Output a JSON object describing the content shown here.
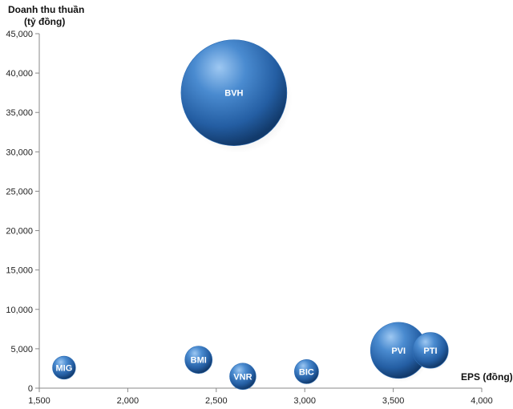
{
  "chart_data": {
    "type": "scatter",
    "xlabel": "EPS (đồng)",
    "ylabel_line1": "Doanh thu thuần",
    "ylabel_line2": "(tỷ đồng)",
    "xlim": [
      1500,
      4000
    ],
    "ylim": [
      0,
      45000
    ],
    "x_ticks": [
      1500,
      2000,
      2500,
      3000,
      3500,
      4000
    ],
    "y_ticks": [
      0,
      5000,
      10000,
      15000,
      20000,
      25000,
      30000,
      35000,
      40000,
      45000
    ],
    "x_tick_labels": [
      "1,500",
      "2,000",
      "2,500",
      "3,000",
      "3,500",
      "4,000"
    ],
    "y_tick_labels": [
      "0",
      "5,000",
      "10,000",
      "15,000",
      "20,000",
      "25,000",
      "30,000",
      "35,000",
      "40,000",
      "45,000"
    ],
    "grid": false,
    "bubble_color": "#2E6DB4",
    "points": [
      {
        "label": "MIG",
        "x": 1640,
        "y": 2600,
        "size": 1
      },
      {
        "label": "BMI",
        "x": 2400,
        "y": 3600,
        "size": 1.4
      },
      {
        "label": "VNR",
        "x": 2650,
        "y": 1500,
        "size": 1.3
      },
      {
        "label": "BVH",
        "x": 2600,
        "y": 37500,
        "size": 21
      },
      {
        "label": "BIC",
        "x": 3010,
        "y": 2100,
        "size": 1.1
      },
      {
        "label": "PVI",
        "x": 3530,
        "y": 4800,
        "size": 5.9
      },
      {
        "label": "PTI",
        "x": 3710,
        "y": 4800,
        "size": 2.4
      }
    ]
  }
}
